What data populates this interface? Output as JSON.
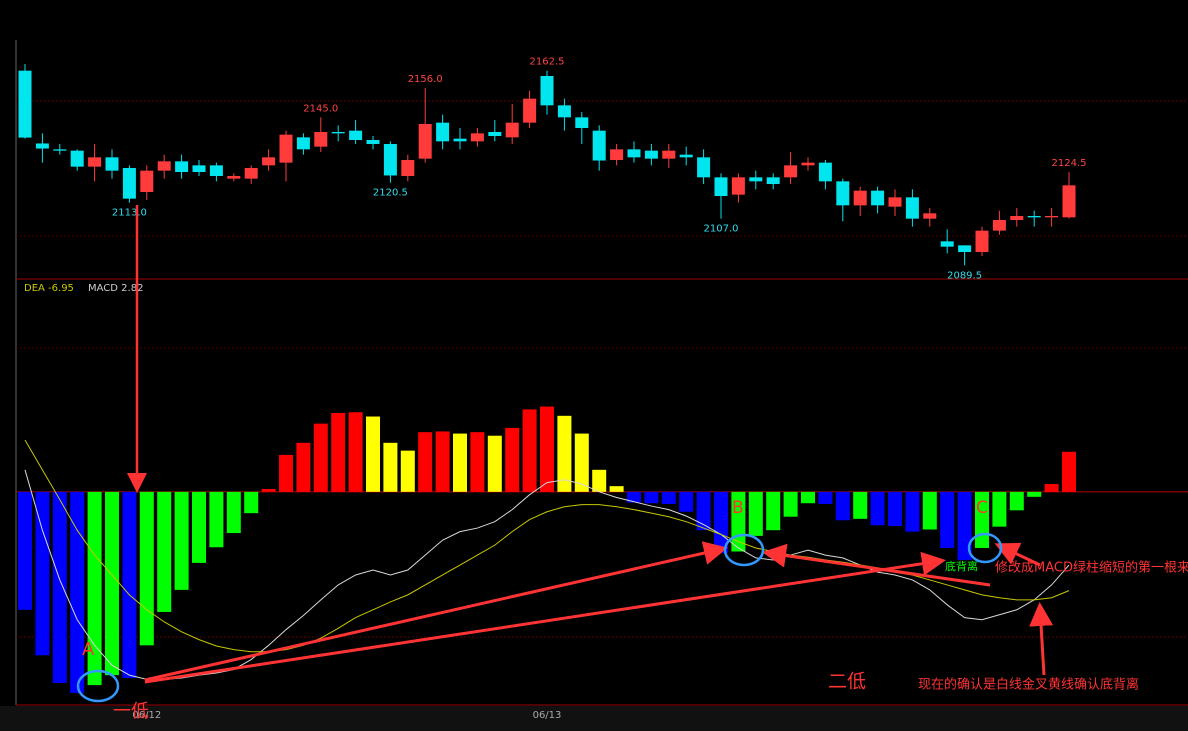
{
  "chart_data": [
    {
      "type": "candlestick",
      "ylim": [
        2084,
        2174
      ],
      "up_color": "#ff3b3b",
      "down_color": "#00e5ee",
      "open": [
        2162.5,
        2135.2,
        2133,
        2132.5,
        2126.5,
        2130,
        2126,
        2117,
        2125,
        2128.5,
        2127,
        2127,
        2122,
        2122,
        2127,
        2128,
        2137.5,
        2134,
        2139.5,
        2140,
        2136.5,
        2135,
        2123,
        2129.5,
        2143,
        2137,
        2136,
        2139.5,
        2137.5,
        2143,
        2160.5,
        2149.5,
        2145,
        2140,
        2129,
        2133,
        2132.5,
        2129.5,
        2131,
        2130,
        2122.5,
        2116,
        2122.5,
        2122.5,
        2122.5,
        2127,
        2128,
        2121,
        2112,
        2117.5,
        2111.5,
        2115,
        2107,
        2098.5,
        2097,
        2094.5,
        2102.5,
        2106.5,
        2108,
        2107.5,
        2107.5
      ],
      "high": [
        2165,
        2139,
        2135,
        2133,
        2135,
        2133,
        2127,
        2127,
        2131,
        2131,
        2129,
        2128,
        2124,
        2127,
        2133,
        2140,
        2139,
        2145,
        2142,
        2144,
        2138,
        2136,
        2131,
        2156,
        2146,
        2141,
        2141,
        2144,
        2150,
        2155,
        2162.5,
        2152,
        2147,
        2142,
        2135,
        2136,
        2135,
        2135,
        2134,
        2133,
        2124,
        2124,
        2125,
        2124,
        2132,
        2130,
        2129,
        2122,
        2119,
        2119,
        2118,
        2118,
        2111,
        2103,
        2097,
        2104,
        2110,
        2111,
        2110,
        2111,
        2124.5
      ],
      "low": [
        2137,
        2128,
        2131,
        2125,
        2121,
        2122,
        2113,
        2114,
        2122,
        2122,
        2123,
        2121,
        2121,
        2120,
        2125,
        2121,
        2131,
        2132,
        2136,
        2135,
        2133,
        2120.5,
        2121,
        2128,
        2133,
        2133,
        2134,
        2136,
        2135,
        2141,
        2146,
        2140,
        2135,
        2125,
        2127,
        2128,
        2127,
        2126,
        2127,
        2120,
        2107,
        2113,
        2118,
        2118,
        2120,
        2125,
        2118,
        2106,
        2108,
        2109,
        2108,
        2104,
        2104,
        2094,
        2089.5,
        2093,
        2101,
        2104,
        2104,
        2104,
        2107
      ],
      "close": [
        2137.4,
        2133.3,
        2132.5,
        2126.5,
        2130,
        2125,
        2114.5,
        2125,
        2128.5,
        2124.5,
        2124.5,
        2123,
        2123,
        2126,
        2130,
        2138.5,
        2133,
        2139.5,
        2139,
        2136.5,
        2135,
        2123.2,
        2129,
        2142.5,
        2136,
        2136,
        2139,
        2138,
        2143,
        2152,
        2149.5,
        2145,
        2141,
        2128.8,
        2133,
        2130,
        2129.5,
        2132.5,
        2130,
        2122.5,
        2115.5,
        2122.5,
        2121,
        2120,
        2127,
        2128,
        2121,
        2112,
        2117.5,
        2112,
        2115,
        2107,
        2109,
        2096.5,
        2094.5,
        2102.5,
        2106.5,
        2108,
        2107.5,
        2108,
        2119.5
      ],
      "high_labels": [
        null,
        null,
        null,
        null,
        null,
        null,
        null,
        null,
        null,
        null,
        null,
        null,
        null,
        null,
        null,
        null,
        null,
        "2145.0",
        null,
        null,
        null,
        null,
        null,
        "2156.0",
        null,
        null,
        null,
        null,
        null,
        null,
        "2162.5",
        null,
        null,
        null,
        null,
        null,
        null,
        null,
        null,
        null,
        null,
        null,
        null,
        null,
        null,
        null,
        null,
        null,
        null,
        null,
        null,
        null,
        null,
        null,
        null,
        null,
        null,
        null,
        null,
        null,
        "2124.5"
      ],
      "low_labels": [
        null,
        null,
        null,
        null,
        null,
        null,
        "2113.0",
        null,
        null,
        null,
        null,
        null,
        null,
        null,
        null,
        null,
        null,
        null,
        null,
        null,
        null,
        "2120.5",
        null,
        null,
        null,
        null,
        null,
        null,
        null,
        null,
        null,
        null,
        null,
        null,
        null,
        null,
        null,
        null,
        null,
        null,
        "2107.0",
        null,
        null,
        null,
        null,
        null,
        null,
        null,
        null,
        null,
        null,
        null,
        null,
        null,
        "2089.5",
        null,
        null,
        null,
        null,
        null,
        null
      ]
    },
    {
      "type": "bar",
      "name": "MACD",
      "ylim": [
        -15,
        13.5
      ],
      "colors": {
        "pos_rising": "#ff0000",
        "pos_falling": "#ffff00",
        "neg_falling": "#0000ff",
        "neg_rising": "#00ff00"
      },
      "categories": [
        null,
        null,
        null,
        null,
        null,
        null,
        null,
        "06/12",
        null,
        null,
        null,
        null,
        null,
        null,
        null,
        null,
        null,
        null,
        null,
        null,
        null,
        null,
        null,
        null,
        null,
        null,
        null,
        null,
        null,
        null,
        "06/13",
        null,
        null,
        null,
        null,
        null,
        null,
        null,
        null,
        null,
        null,
        null,
        null,
        null,
        null,
        null,
        null,
        null,
        null,
        null,
        null,
        null,
        null,
        null,
        null,
        null,
        null,
        null,
        null,
        null,
        null
      ],
      "values": [
        -8.3,
        -11.5,
        -13.45,
        -14.15,
        -13.6,
        -12.9,
        -13.1,
        -10.8,
        -8.45,
        -6.9,
        -5.0,
        -3.9,
        -2.9,
        -1.5,
        0.2,
        2.6,
        3.45,
        4.8,
        5.55,
        5.6,
        5.3,
        3.45,
        2.9,
        4.2,
        4.25,
        4.1,
        4.2,
        3.95,
        4.5,
        5.8,
        6.0,
        5.35,
        4.1,
        1.55,
        0.4,
        -0.75,
        -0.8,
        -0.85,
        -1.4,
        -2.7,
        -4.3,
        -4.2,
        -3.1,
        -2.7,
        -1.75,
        -0.8,
        -0.85,
        -2.0,
        -1.9,
        -2.35,
        -2.4,
        -2.8,
        -2.65,
        -3.95,
        -4.8,
        -3.95,
        -2.45,
        -1.3,
        -0.35,
        0.55,
        2.82
      ],
      "lines": [
        {
          "color": "#d8d8d8",
          "values": [
            1.55,
            -2.7,
            -6.2,
            -9.0,
            -10.8,
            -12.2,
            -12.9,
            -13.2,
            -13.2,
            -13.1,
            -12.9,
            -12.75,
            -12.5,
            -11.8,
            -10.8,
            -9.7,
            -8.7,
            -7.6,
            -6.55,
            -5.85,
            -5.5,
            -5.85,
            -5.5,
            -4.45,
            -3.4,
            -2.8,
            -2.55,
            -2.1,
            -1.25,
            -0.2,
            0.65,
            0.85,
            0.55,
            0,
            -0.4,
            -0.7,
            -1.0,
            -1.25,
            -1.7,
            -2.3,
            -3.0,
            -3.95,
            -4.65,
            -4.8,
            -4.45,
            -4.1,
            -4.45,
            -4.65,
            -5.15,
            -5.65,
            -5.85,
            -6.2,
            -6.9,
            -7.95,
            -8.85,
            -9.0,
            -8.65,
            -8.3,
            -7.6,
            -6.55,
            -5.15
          ]
        },
        {
          "name": "DEA",
          "color": "#c8c800",
          "values": [
            3.65,
            1.55,
            -0.55,
            -2.7,
            -4.45,
            -5.85,
            -7.25,
            -8.3,
            -9.15,
            -9.85,
            -10.4,
            -10.85,
            -11.1,
            -11.25,
            -11.25,
            -11.1,
            -10.8,
            -10.3,
            -9.6,
            -8.85,
            -8.3,
            -7.75,
            -7.25,
            -6.55,
            -5.85,
            -5.15,
            -4.45,
            -3.75,
            -2.8,
            -1.95,
            -1.4,
            -1.05,
            -0.9,
            -0.9,
            -1.05,
            -1.25,
            -1.5,
            -1.75,
            -2.1,
            -2.55,
            -3.0,
            -3.5,
            -3.95,
            -4.2,
            -4.45,
            -4.6,
            -4.8,
            -4.95,
            -5.15,
            -5.35,
            -5.65,
            -5.85,
            -6.2,
            -6.55,
            -6.9,
            -7.25,
            -7.45,
            -7.6,
            -7.6,
            -7.45,
            -6.95
          ]
        }
      ],
      "annotations": [
        "A",
        "B",
        "C",
        "一低",
        "二低",
        "底背离",
        "修改成MACD绿柱缩短的第一根来",
        "现在的确认是白线金叉黄线确认底背离"
      ]
    }
  ]
}
